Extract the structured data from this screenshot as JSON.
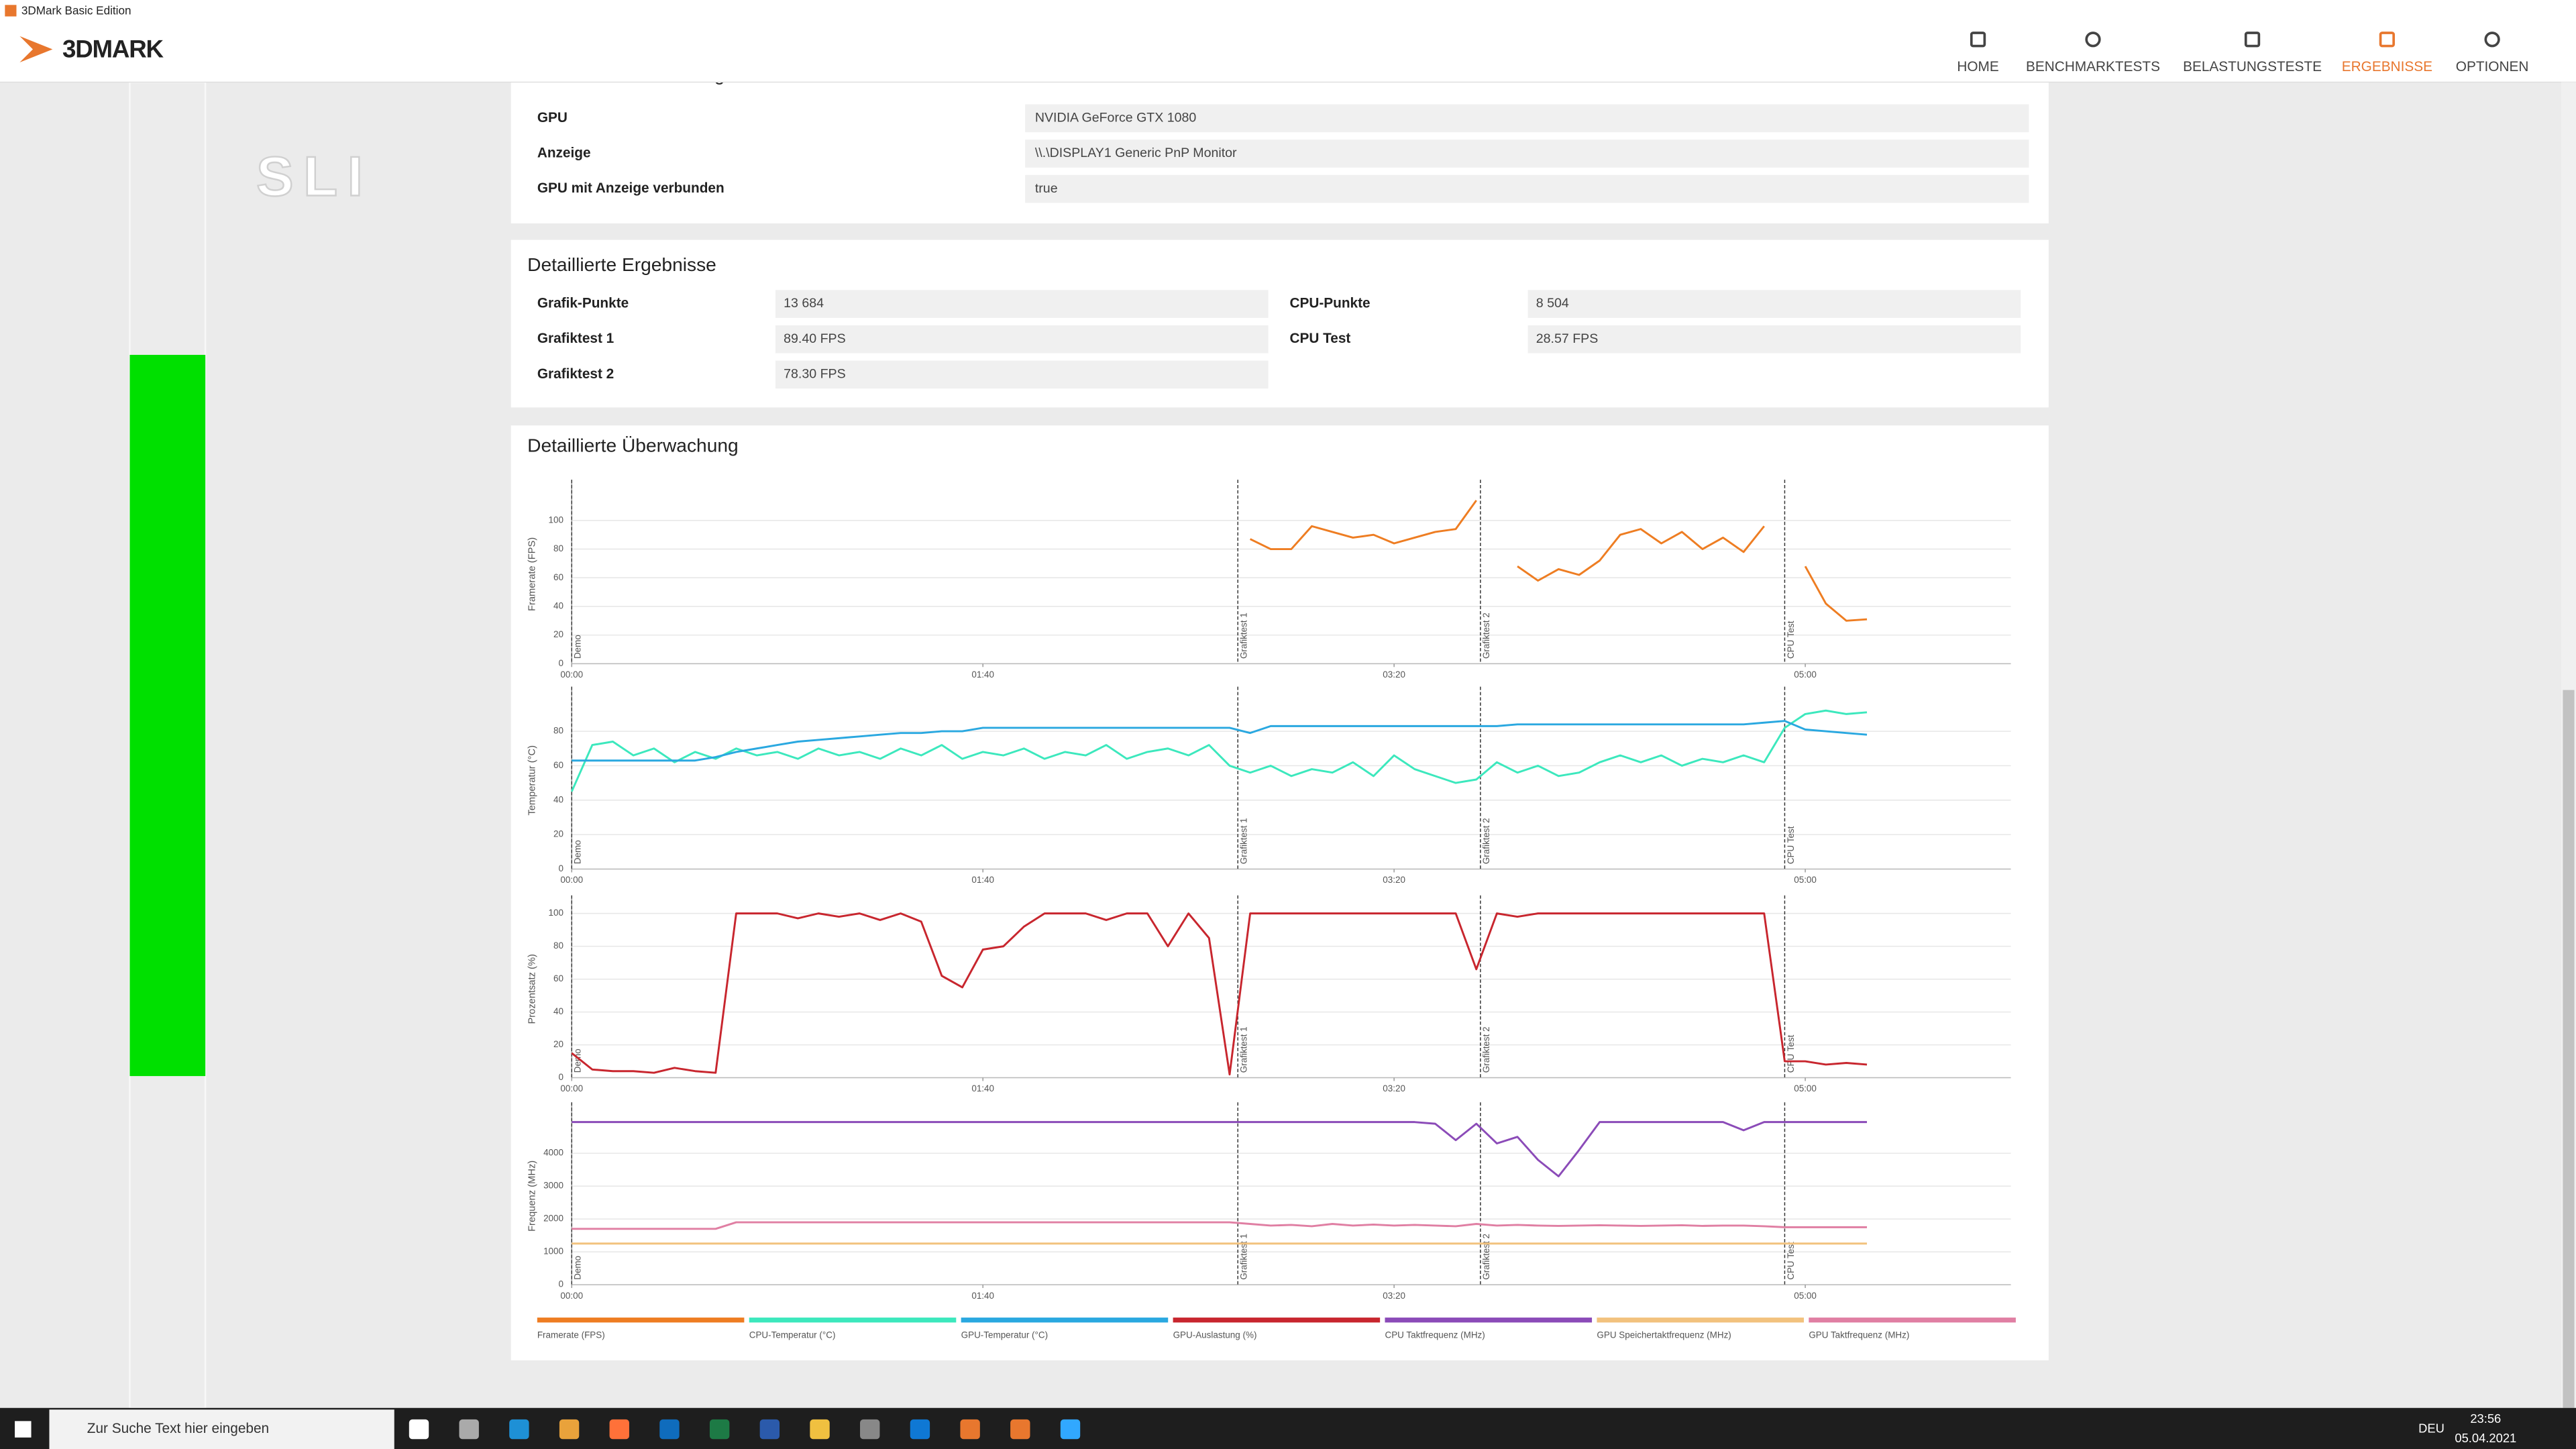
{
  "window": {
    "title": "3DMark Basic Edition"
  },
  "nav": {
    "logo": "3DMARK",
    "items": [
      "HOME",
      "BENCHMARKTESTS",
      "BELASTUNGSTESTE",
      "ERGEBNISSE",
      "OPTIONEN"
    ]
  },
  "sidebar": {
    "label": "SLI"
  },
  "settings": {
    "title": "Verwendete Einstellungen",
    "rows": [
      {
        "label": "GPU",
        "value": "NVIDIA GeForce GTX 1080"
      },
      {
        "label": "Anzeige",
        "value": "\\\\.\\DISPLAY1 Generic PnP Monitor"
      },
      {
        "label": "GPU mit Anzeige verbunden",
        "value": "true"
      }
    ]
  },
  "results": {
    "title": "Detaillierte Ergebnisse",
    "left": [
      {
        "label": "Grafik-Punkte",
        "value": "13 684"
      },
      {
        "label": "Grafiktest 1",
        "value": "89.40 FPS"
      },
      {
        "label": "Grafiktest 2",
        "value": "78.30 FPS"
      }
    ],
    "right": [
      {
        "label": "CPU-Punkte",
        "value": "8 504"
      },
      {
        "label": "CPU Test",
        "value": "28.57 FPS"
      }
    ]
  },
  "monitoring": {
    "title": "Detaillierte Überwachung"
  },
  "chart_data": [
    {
      "type": "line",
      "y_label": "Framerate (FPS)",
      "xlim": [
        0,
        350
      ],
      "ylim": [
        0,
        125
      ],
      "xticks": [
        {
          "value": 0,
          "label": "00:00"
        },
        {
          "value": 100,
          "label": "01:40"
        },
        {
          "value": 200,
          "label": "03:20"
        },
        {
          "value": 300,
          "label": "05:00"
        }
      ],
      "yticks": [
        0,
        20,
        40,
        60,
        80,
        100
      ],
      "annotations": [
        {
          "x": 0,
          "label": "Demo"
        },
        {
          "x": 162,
          "label": "Grafiktest 1"
        },
        {
          "x": 221,
          "label": "Grafiktest 2"
        },
        {
          "x": 295,
          "label": "CPU Test"
        }
      ],
      "x": [
        0,
        5,
        10,
        15,
        20,
        25,
        30,
        35,
        40,
        45,
        50,
        55,
        60,
        65,
        70,
        75,
        80,
        85,
        90,
        95,
        100,
        105,
        110,
        115,
        120,
        125,
        130,
        135,
        140,
        145,
        150,
        155,
        160,
        165,
        170,
        175,
        180,
        185,
        190,
        195,
        200,
        205,
        210,
        215,
        220,
        225,
        230,
        235,
        240,
        245,
        250,
        255,
        260,
        265,
        270,
        275,
        280,
        285,
        290,
        295,
        300,
        305,
        310,
        315
      ],
      "series": [
        {
          "name": "Framerate (FPS)",
          "color": "#ee7d22",
          "values": [
            null,
            null,
            null,
            null,
            null,
            null,
            null,
            null,
            null,
            null,
            null,
            null,
            null,
            null,
            null,
            null,
            null,
            null,
            null,
            null,
            null,
            null,
            null,
            null,
            null,
            null,
            null,
            null,
            null,
            null,
            null,
            null,
            null,
            87,
            80,
            80,
            96,
            92,
            88,
            90,
            84,
            88,
            92,
            94,
            114,
            null,
            68,
            58,
            66,
            62,
            72,
            90,
            94,
            84,
            92,
            80,
            88,
            78,
            96,
            null,
            68,
            42,
            30,
            31
          ]
        }
      ]
    },
    {
      "type": "line",
      "y_label": "Temperatur (°C)",
      "xlim": [
        0,
        350
      ],
      "ylim": [
        0,
        103
      ],
      "xticks": [
        {
          "value": 0,
          "label": "00:00"
        },
        {
          "value": 100,
          "label": "01:40"
        },
        {
          "value": 200,
          "label": "03:20"
        },
        {
          "value": 300,
          "label": "05:00"
        }
      ],
      "yticks": [
        0,
        20,
        40,
        60,
        80
      ],
      "annotations": [
        {
          "x": 0,
          "label": "Demo"
        },
        {
          "x": 162,
          "label": "Grafiktest 1"
        },
        {
          "x": 221,
          "label": "Grafiktest 2"
        },
        {
          "x": 295,
          "label": "CPU Test"
        }
      ],
      "x": [
        0,
        5,
        10,
        15,
        20,
        25,
        30,
        35,
        40,
        45,
        50,
        55,
        60,
        65,
        70,
        75,
        80,
        85,
        90,
        95,
        100,
        105,
        110,
        115,
        120,
        125,
        130,
        135,
        140,
        145,
        150,
        155,
        160,
        165,
        170,
        175,
        180,
        185,
        190,
        195,
        200,
        205,
        210,
        215,
        220,
        225,
        230,
        235,
        240,
        245,
        250,
        255,
        260,
        265,
        270,
        275,
        280,
        285,
        290,
        295,
        300,
        305,
        310,
        315
      ],
      "series": [
        {
          "name": "CPU-Temperatur (°C)",
          "color": "#3ce8bd",
          "values": [
            45,
            72,
            74,
            66,
            70,
            62,
            68,
            64,
            70,
            66,
            68,
            64,
            70,
            66,
            68,
            64,
            70,
            66,
            72,
            64,
            68,
            66,
            70,
            64,
            68,
            66,
            72,
            64,
            68,
            70,
            66,
            72,
            60,
            56,
            60,
            54,
            58,
            56,
            62,
            54,
            66,
            58,
            54,
            50,
            52,
            62,
            56,
            60,
            54,
            56,
            62,
            66,
            62,
            66,
            60,
            64,
            62,
            66,
            62,
            82,
            90,
            92,
            90,
            91
          ]
        },
        {
          "name": "GPU-Temperatur (°C)",
          "color": "#2aa8e0",
          "values": [
            63,
            63,
            63,
            63,
            63,
            63,
            63,
            65,
            68,
            70,
            72,
            74,
            75,
            76,
            77,
            78,
            79,
            79,
            80,
            80,
            82,
            82,
            82,
            82,
            82,
            82,
            82,
            82,
            82,
            82,
            82,
            82,
            82,
            79,
            83,
            83,
            83,
            83,
            83,
            83,
            83,
            83,
            83,
            83,
            83,
            83,
            84,
            84,
            84,
            84,
            84,
            84,
            84,
            84,
            84,
            84,
            84,
            84,
            85,
            86,
            81,
            80,
            79,
            78
          ]
        }
      ]
    },
    {
      "type": "line",
      "y_label": "Prozentsatz (%)",
      "xlim": [
        0,
        350
      ],
      "ylim": [
        0,
        108
      ],
      "xticks": [
        {
          "value": 0,
          "label": "00:00"
        },
        {
          "value": 100,
          "label": "01:40"
        },
        {
          "value": 200,
          "label": "03:20"
        },
        {
          "value": 300,
          "label": "05:00"
        }
      ],
      "yticks": [
        0,
        20,
        40,
        60,
        80,
        100
      ],
      "annotations": [
        {
          "x": 0,
          "label": "Demo"
        },
        {
          "x": 162,
          "label": "Grafiktest 1"
        },
        {
          "x": 221,
          "label": "Grafiktest 2"
        },
        {
          "x": 295,
          "label": "CPU Test"
        }
      ],
      "x": [
        0,
        5,
        10,
        15,
        20,
        25,
        30,
        35,
        40,
        45,
        50,
        55,
        60,
        65,
        70,
        75,
        80,
        85,
        90,
        95,
        100,
        105,
        110,
        115,
        120,
        125,
        130,
        135,
        140,
        145,
        150,
        155,
        160,
        165,
        170,
        175,
        180,
        185,
        190,
        195,
        200,
        205,
        210,
        215,
        220,
        225,
        230,
        235,
        240,
        245,
        250,
        255,
        260,
        265,
        270,
        275,
        280,
        285,
        290,
        295,
        300,
        305,
        310,
        315
      ],
      "series": [
        {
          "name": "GPU-Auslastung (%)",
          "color": "#c8262e",
          "values": [
            15,
            5,
            4,
            4,
            3,
            6,
            4,
            3,
            100,
            100,
            100,
            97,
            100,
            98,
            100,
            96,
            100,
            95,
            62,
            55,
            78,
            80,
            92,
            100,
            100,
            100,
            96,
            100,
            100,
            80,
            100,
            85,
            2,
            100,
            100,
            100,
            100,
            100,
            100,
            100,
            100,
            100,
            100,
            100,
            66,
            100,
            98,
            100,
            100,
            100,
            100,
            100,
            100,
            100,
            100,
            100,
            100,
            100,
            100,
            10,
            10,
            8,
            9,
            8
          ]
        }
      ]
    },
    {
      "type": "line",
      "y_label": "Frequenz (MHz)",
      "xlim": [
        0,
        350
      ],
      "ylim": [
        0,
        5400
      ],
      "xticks": [
        {
          "value": 0,
          "label": "00:00"
        },
        {
          "value": 100,
          "label": "01:40"
        },
        {
          "value": 200,
          "label": "03:20"
        },
        {
          "value": 300,
          "label": "05:00"
        }
      ],
      "yticks": [
        0,
        1000,
        2000,
        3000,
        4000
      ],
      "annotations": [
        {
          "x": 0,
          "label": "Demo"
        },
        {
          "x": 162,
          "label": "Grafiktest 1"
        },
        {
          "x": 221,
          "label": "Grafiktest 2"
        },
        {
          "x": 295,
          "label": "CPU Test"
        }
      ],
      "x": [
        0,
        5,
        10,
        15,
        20,
        25,
        30,
        35,
        40,
        45,
        50,
        55,
        60,
        65,
        70,
        75,
        80,
        85,
        90,
        95,
        100,
        105,
        110,
        115,
        120,
        125,
        130,
        135,
        140,
        145,
        150,
        155,
        160,
        165,
        170,
        175,
        180,
        185,
        190,
        195,
        200,
        205,
        210,
        215,
        220,
        225,
        230,
        235,
        240,
        245,
        250,
        255,
        260,
        265,
        270,
        275,
        280,
        285,
        290,
        295,
        300,
        305,
        310,
        315
      ],
      "series": [
        {
          "name": "CPU Taktfrequenz (MHz)",
          "color": "#8b4bb8",
          "values": [
            4950,
            4950,
            4950,
            4950,
            4950,
            4950,
            4950,
            4950,
            4950,
            4950,
            4950,
            4950,
            4950,
            4950,
            4950,
            4950,
            4950,
            4950,
            4950,
            4950,
            4950,
            4950,
            4950,
            4950,
            4950,
            4950,
            4950,
            4950,
            4950,
            4950,
            4950,
            4950,
            4950,
            4950,
            4950,
            4950,
            4950,
            4950,
            4950,
            4950,
            4950,
            4950,
            4900,
            4400,
            4900,
            4300,
            4500,
            3800,
            3300,
            4100,
            4950,
            4950,
            4950,
            4950,
            4950,
            4950,
            4950,
            4700,
            4950,
            4950,
            4950,
            4950,
            4950,
            4950
          ]
        },
        {
          "name": "GPU Speichertaktfrequenz (MHz)",
          "color": "#f2c27e",
          "values": [
            1252,
            1252,
            1252,
            1252,
            1252,
            1252,
            1252,
            1252,
            1252,
            1252,
            1252,
            1252,
            1252,
            1252,
            1252,
            1252,
            1252,
            1252,
            1252,
            1252,
            1252,
            1252,
            1252,
            1252,
            1252,
            1252,
            1252,
            1252,
            1252,
            1252,
            1252,
            1252,
            1252,
            1252,
            1252,
            1252,
            1252,
            1252,
            1252,
            1252,
            1252,
            1252,
            1252,
            1252,
            1252,
            1252,
            1252,
            1252,
            1252,
            1252,
            1252,
            1252,
            1252,
            1252,
            1252,
            1252,
            1252,
            1252,
            1252,
            1252,
            1252,
            1252,
            1252,
            1252
          ]
        },
        {
          "name": "GPU Taktfrequenz (MHz)",
          "color": "#e07fa3",
          "values": [
            1700,
            1700,
            1700,
            1700,
            1700,
            1700,
            1700,
            1700,
            1900,
            1900,
            1900,
            1900,
            1900,
            1900,
            1900,
            1900,
            1900,
            1900,
            1900,
            1900,
            1900,
            1900,
            1900,
            1900,
            1900,
            1900,
            1900,
            1900,
            1900,
            1900,
            1900,
            1900,
            1900,
            1850,
            1800,
            1820,
            1780,
            1850,
            1800,
            1830,
            1800,
            1820,
            1800,
            1780,
            1850,
            1800,
            1820,
            1800,
            1790,
            1800,
            1810,
            1800,
            1790,
            1800,
            1810,
            1790,
            1800,
            1800,
            1780,
            1750,
            1750,
            1750,
            1750,
            1750
          ]
        }
      ]
    }
  ],
  "taskbar": {
    "search": "Zur Suche Text hier eingeben",
    "language": "DEU",
    "time": "23:56",
    "date": "05.04.2021"
  }
}
